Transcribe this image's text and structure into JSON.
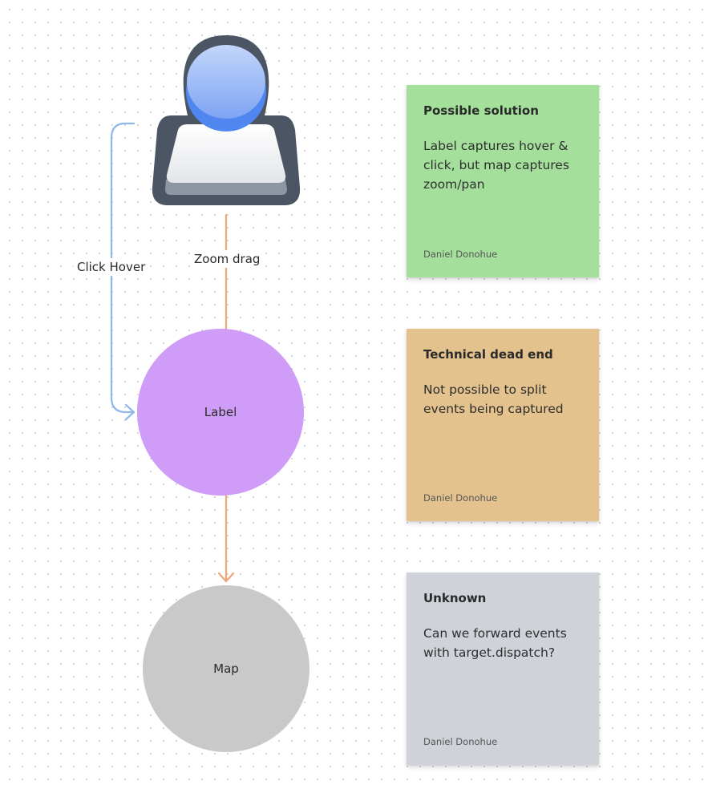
{
  "nodes": {
    "user": {
      "icon": "user-icon"
    },
    "label": {
      "text": "Label",
      "color": "#cf9cf7"
    },
    "map": {
      "text": "Map",
      "color": "#c9c9c9"
    }
  },
  "connectors": {
    "click_hover": {
      "text": "Click Hover",
      "color": "#8fb7ec"
    },
    "zoom_drag": {
      "text": "Zoom drag",
      "color": "#eea577"
    }
  },
  "notes": [
    {
      "title": "Possible solution",
      "body": "Label captures hover & click, but map captures zoom/pan",
      "author": "Daniel Donohue",
      "color": "#a4e09c"
    },
    {
      "title": "Technical dead end",
      "body": "Not possible to split events being captured",
      "author": "Daniel Donohue",
      "color": "#e4c28d"
    },
    {
      "title": "Unknown",
      "body": "Can we forward events with target.dispatch?",
      "author": "Daniel Donohue",
      "color": "#cfd2d8"
    }
  ]
}
